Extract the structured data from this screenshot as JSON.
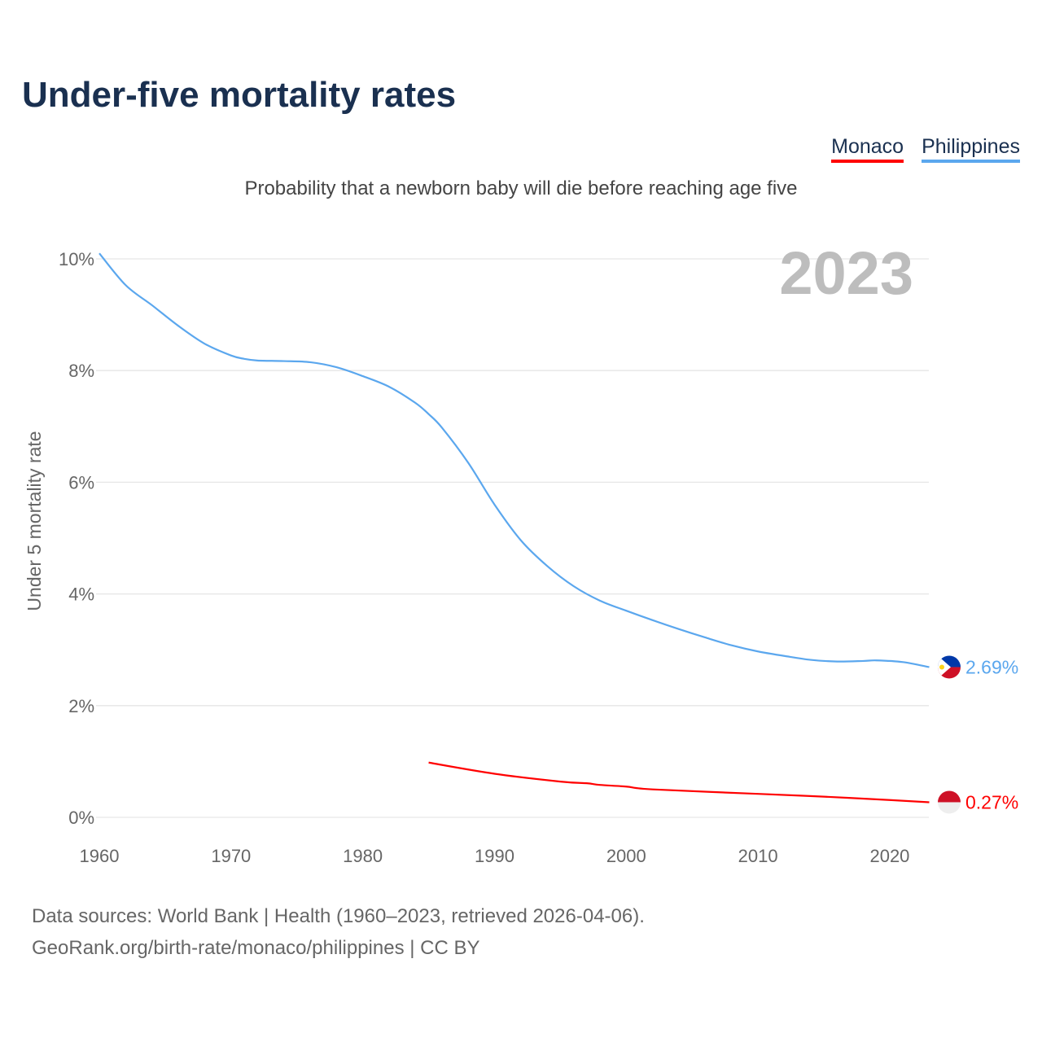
{
  "title": "Under-five mortality rates",
  "subtitle": "Probability that a newborn baby will die before reaching age five",
  "footer": {
    "line1": "Data sources: World Bank | Health (1960–2023, retrieved 2026-04-06).",
    "line2": "GeoRank.org/birth-rate/monaco/philippines | CC BY"
  },
  "chart_data": {
    "type": "line",
    "title": "Under-five mortality rates",
    "ylabel": "Under 5 mortality rate",
    "xlabel": "",
    "year_label": "2023",
    "xlim": [
      1960,
      2023
    ],
    "ylim": [
      0,
      10
    ],
    "x_ticks": [
      1960,
      1970,
      1980,
      1990,
      2000,
      2010,
      2020
    ],
    "y_ticks": [
      0,
      2,
      4,
      6,
      8,
      10
    ],
    "y_tick_labels": [
      "0%",
      "2%",
      "4%",
      "6%",
      "8%",
      "10%"
    ],
    "grid": true,
    "legend_position": "top-right",
    "series": [
      {
        "name": "Monaco",
        "color": "#ff0000",
        "end_label": "0.27%",
        "x": [
          1985,
          1990,
          1995,
          1997,
          1998,
          2000,
          2002,
          2010,
          2015,
          2020,
          2023
        ],
        "y": [
          0.98,
          0.78,
          0.64,
          0.61,
          0.58,
          0.55,
          0.5,
          0.42,
          0.37,
          0.31,
          0.27
        ]
      },
      {
        "name": "Philippines",
        "color": "#5ba7ee",
        "end_label": "2.69%",
        "x": [
          1960,
          1962,
          1964,
          1966,
          1968,
          1970,
          1971,
          1972,
          1974,
          1976,
          1978,
          1980,
          1982,
          1984,
          1985,
          1986,
          1988,
          1990,
          1992,
          1994,
          1996,
          1998,
          2000,
          2002,
          2004,
          2006,
          2008,
          2010,
          2012,
          2014,
          2016,
          2018,
          2019,
          2021,
          2023
        ],
        "y": [
          10.1,
          9.53,
          9.17,
          8.8,
          8.48,
          8.27,
          8.21,
          8.18,
          8.17,
          8.15,
          8.06,
          7.9,
          7.71,
          7.42,
          7.22,
          6.98,
          6.35,
          5.6,
          4.96,
          4.5,
          4.14,
          3.88,
          3.7,
          3.53,
          3.37,
          3.22,
          3.08,
          2.97,
          2.89,
          2.82,
          2.79,
          2.8,
          2.81,
          2.78,
          2.69
        ]
      }
    ]
  }
}
